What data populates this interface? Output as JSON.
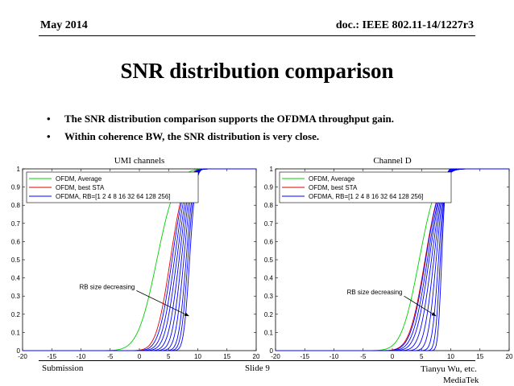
{
  "header": {
    "left": "May 2014",
    "right": "doc.: IEEE 802.11-14/1227r3"
  },
  "title": "SNR distribution comparison",
  "bullets": [
    "The SNR distribution comparison supports the OFDMA throughput gain.",
    "Within coherence BW, the SNR distribution is very close."
  ],
  "footer": {
    "left": "Submission",
    "center": "Slide 9",
    "right_line1": "Tianyu Wu, etc.",
    "right_line2": "MediaTek"
  },
  "colors": {
    "average": "#00d000",
    "best": "#e00000",
    "ofdma": "#0000ff"
  },
  "chart_data": [
    {
      "type": "line",
      "title": "UMI channels",
      "xlim": [
        -20,
        20
      ],
      "ylim": [
        0,
        1
      ],
      "xticks": [
        -20,
        -15,
        -10,
        -5,
        0,
        5,
        10,
        15,
        20
      ],
      "yticks": [
        0,
        0.1,
        0.2,
        0.3,
        0.4,
        0.5,
        0.6,
        0.7,
        0.8,
        0.9,
        1
      ],
      "grid": false,
      "legend_position": "top-left",
      "annotation": {
        "text": "RB size decreasing",
        "arrow_from": [
          -0.5,
          0.33
        ],
        "arrow_to": [
          8.5,
          0.19
        ]
      },
      "series": [
        {
          "name": "OFDM, Average",
          "color": "#00d000",
          "mu": 3.0,
          "s": 2.6
        },
        {
          "name": "OFDM, best STA",
          "color": "#e00000",
          "mu": 5.3,
          "s": 1.9
        },
        {
          "name": "OFDMA, RB=[1 2 4 8 16 32 64 128 256]",
          "color": "#0000ff",
          "members": [
            {
              "mu": 5.6,
              "s": 1.8
            },
            {
              "mu": 6.0,
              "s": 1.7
            },
            {
              "mu": 6.4,
              "s": 1.6
            },
            {
              "mu": 6.8,
              "s": 1.45
            },
            {
              "mu": 7.2,
              "s": 1.3
            },
            {
              "mu": 7.6,
              "s": 1.15
            },
            {
              "mu": 8.0,
              "s": 1.0
            },
            {
              "mu": 8.3,
              "s": 0.9
            },
            {
              "mu": 8.6,
              "s": 0.8
            }
          ]
        }
      ]
    },
    {
      "type": "line",
      "title": "Channel D",
      "xlim": [
        -20,
        20
      ],
      "ylim": [
        0,
        1
      ],
      "xticks": [
        -20,
        -15,
        -10,
        -5,
        0,
        5,
        10,
        15,
        20
      ],
      "yticks": [
        0,
        0.1,
        0.2,
        0.3,
        0.4,
        0.5,
        0.6,
        0.7,
        0.8,
        0.9,
        1
      ],
      "grid": false,
      "legend_position": "top-left",
      "annotation": {
        "text": "RB size decreasing",
        "arrow_from": [
          2.0,
          0.3
        ],
        "arrow_to": [
          7.5,
          0.19
        ]
      },
      "series": [
        {
          "name": "OFDM, Average",
          "color": "#00d000",
          "mu": 4.6,
          "s": 2.4
        },
        {
          "name": "OFDM, best STA",
          "color": "#e00000",
          "mu": 5.6,
          "s": 2.1
        },
        {
          "name": "OFDMA, RB=[1 2 4 8 16 32 64 128 256]",
          "color": "#0000ff",
          "members": [
            {
              "mu": 5.7,
              "s": 2.05
            },
            {
              "mu": 6.0,
              "s": 1.95
            },
            {
              "mu": 6.3,
              "s": 1.8
            },
            {
              "mu": 6.7,
              "s": 1.6
            },
            {
              "mu": 7.1,
              "s": 1.35
            },
            {
              "mu": 7.5,
              "s": 1.1
            },
            {
              "mu": 7.9,
              "s": 0.85
            },
            {
              "mu": 8.2,
              "s": 0.65
            },
            {
              "mu": 8.45,
              "s": 0.5
            }
          ]
        }
      ]
    }
  ]
}
